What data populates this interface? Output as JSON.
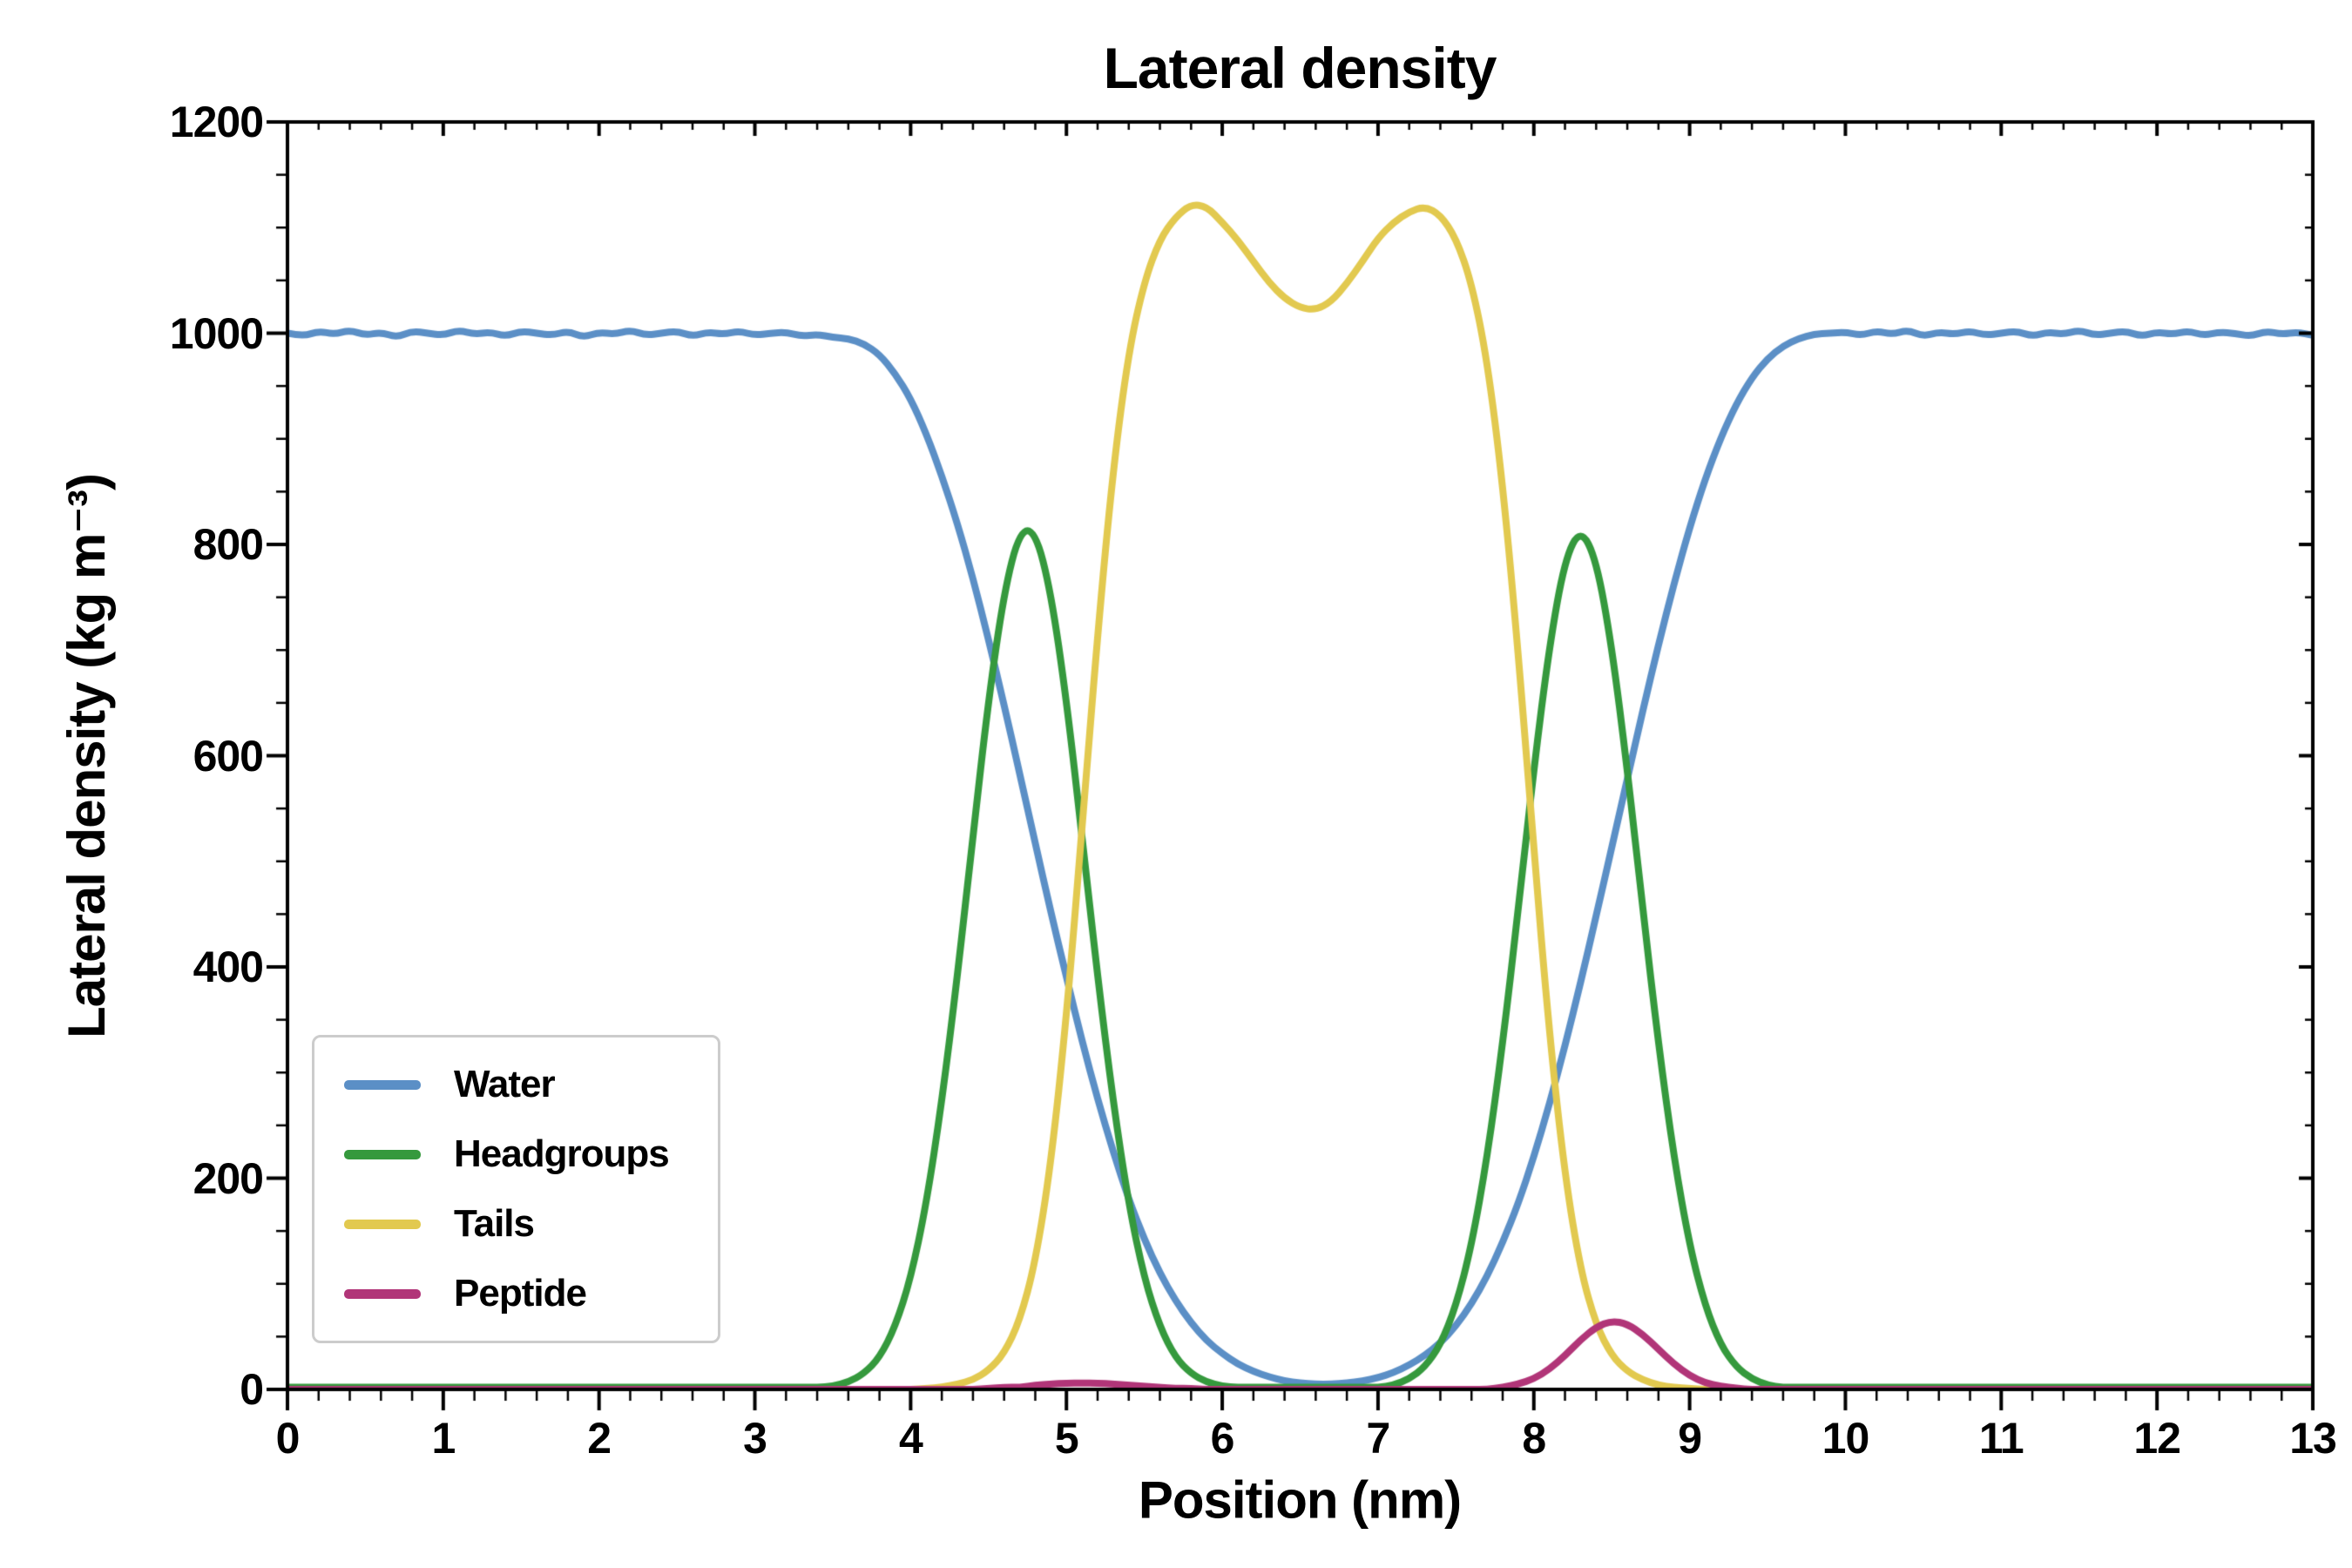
{
  "page": {
    "background": "#ffffff"
  },
  "chart_data": {
    "type": "line",
    "title": "Lateral density",
    "xlabel": "Position (nm)",
    "ylabel": "Lateral density (kg m⁻³)",
    "xlim": [
      0,
      13
    ],
    "ylim": [
      0,
      1200
    ],
    "xticks": [
      0,
      1,
      2,
      3,
      4,
      5,
      6,
      7,
      8,
      9,
      10,
      11,
      12,
      13
    ],
    "yticks": [
      0,
      200,
      400,
      600,
      800,
      1000,
      1200
    ],
    "x_minor_step": 0.2,
    "y_minor_step": 50,
    "grid": false,
    "legend_position": "lower left",
    "axis_color": "#000000",
    "text_color": "#000000",
    "legend_border_color": "#cccccc",
    "x": {
      "start": 0.0,
      "step": 0.1,
      "count": 131
    },
    "series": [
      {
        "name": "Water",
        "color": "#5b8fc6",
        "values": [
          1000,
          997,
          1002,
          999,
          1003,
          998,
          1001,
          996,
          1002,
          1000,
          998,
          1003,
          999,
          1001,
          997,
          1002,
          1000,
          998,
          1002,
          996,
          1001,
          999,
          1003,
          998,
          1000,
          1002,
          997,
          1001,
          999,
          1002,
          998,
          1000,
          1001,
          997,
          999,
          996,
          995,
          990,
          980,
          962,
          938,
          905,
          865,
          820,
          768,
          710,
          648,
          583,
          517,
          452,
          390,
          330,
          275,
          225,
          180,
          142,
          110,
          84,
          63,
          46,
          34,
          24,
          17,
          12,
          8,
          6,
          5,
          5,
          6,
          8,
          11,
          16,
          23,
          32,
          44,
          60,
          81,
          107,
          139,
          176,
          220,
          270,
          325,
          385,
          448,
          513,
          578,
          643,
          705,
          763,
          816,
          862,
          901,
          933,
          958,
          976,
          988,
          995,
          999,
          1000,
          1001,
          998,
          1002,
          999,
          1003,
          997,
          1001,
          999,
          1002,
          998,
          1000,
          1002,
          997,
          1001,
          999,
          1003,
          998,
          1000,
          1002,
          997,
          1001,
          999,
          1002,
          998,
          1001,
          1000,
          997,
          1002,
          999,
          1001,
          998
        ]
      },
      {
        "name": "Headgroups",
        "color": "#35993d",
        "values": [
          2,
          2,
          2,
          2,
          2,
          2,
          2,
          2,
          2,
          2,
          2,
          2,
          2,
          2,
          2,
          2,
          2,
          2,
          2,
          2,
          2,
          2,
          2,
          2,
          2,
          2,
          2,
          2,
          2,
          2,
          2,
          2,
          2,
          2,
          2,
          3,
          7,
          15,
          30,
          59,
          105,
          175,
          272,
          391,
          524,
          653,
          755,
          813,
          813,
          755,
          653,
          524,
          391,
          272,
          175,
          105,
          59,
          30,
          15,
          7,
          3,
          2,
          2,
          2,
          2,
          2,
          2,
          2,
          2,
          2,
          2,
          4,
          10,
          21,
          42,
          79,
          136,
          219,
          327,
          454,
          587,
          704,
          786,
          815,
          786,
          704,
          587,
          454,
          327,
          219,
          136,
          79,
          42,
          21,
          10,
          4,
          2,
          2,
          2,
          2,
          2,
          2,
          2,
          2,
          2,
          2,
          2,
          2,
          2,
          2,
          2,
          2,
          2,
          2,
          2,
          2,
          2,
          2,
          2,
          2,
          2,
          2,
          2,
          2,
          2,
          2,
          2,
          2,
          2,
          2,
          2
        ]
      },
      {
        "name": "Tails",
        "color": "#e2c94f",
        "values": [
          0,
          0,
          0,
          0,
          0,
          0,
          0,
          0,
          0,
          0,
          0,
          0,
          0,
          0,
          0,
          0,
          0,
          0,
          0,
          0,
          0,
          0,
          0,
          0,
          0,
          0,
          0,
          0,
          0,
          0,
          0,
          0,
          0,
          0,
          0,
          0,
          0,
          0,
          0,
          0,
          0,
          1,
          2,
          5,
          9,
          18,
          34,
          65,
          120,
          213,
          352,
          530,
          715,
          872,
          983,
          1049,
          1089,
          1110,
          1122,
          1120,
          1105,
          1088,
          1068,
          1048,
          1033,
          1024,
          1022,
          1030,
          1047,
          1068,
          1090,
          1105,
          1115,
          1120,
          1112,
          1090,
          1048,
          975,
          858,
          698,
          511,
          336,
          202,
          113,
          61,
          32,
          17,
          9,
          4,
          2,
          1,
          0,
          0,
          0,
          0,
          0,
          0,
          0,
          0,
          0,
          0,
          0,
          0,
          0,
          0,
          0,
          0,
          0,
          0,
          0,
          0,
          0,
          0,
          0,
          0,
          0,
          0,
          0,
          0,
          0,
          0,
          0,
          0,
          0,
          0,
          0,
          0,
          0,
          0,
          0,
          0
        ]
      },
      {
        "name": "Peptide",
        "color": "#b13578",
        "values": [
          0,
          0,
          0,
          0,
          0,
          0,
          0,
          0,
          0,
          0,
          0,
          0,
          0,
          0,
          0,
          0,
          0,
          0,
          0,
          0,
          0,
          0,
          0,
          0,
          0,
          0,
          0,
          0,
          0,
          0,
          0,
          0,
          0,
          0,
          0,
          0,
          0,
          0,
          0,
          0,
          0,
          0,
          0,
          0,
          0,
          1,
          2,
          2,
          4,
          5,
          6,
          6,
          6,
          5,
          4,
          3,
          2,
          1,
          1,
          0,
          0,
          0,
          0,
          0,
          0,
          0,
          0,
          0,
          0,
          0,
          0,
          0,
          0,
          0,
          0,
          0,
          0,
          0,
          2,
          5,
          10,
          19,
          32,
          47,
          59,
          65,
          62,
          52,
          38,
          24,
          13,
          6,
          3,
          1,
          0,
          0,
          0,
          0,
          0,
          0,
          0,
          0,
          0,
          0,
          0,
          0,
          0,
          0,
          0,
          0,
          0,
          0,
          0,
          0,
          0,
          0,
          0,
          0,
          0,
          0,
          0,
          0,
          0,
          0,
          0,
          0,
          0,
          0,
          0,
          0,
          0
        ]
      }
    ]
  }
}
